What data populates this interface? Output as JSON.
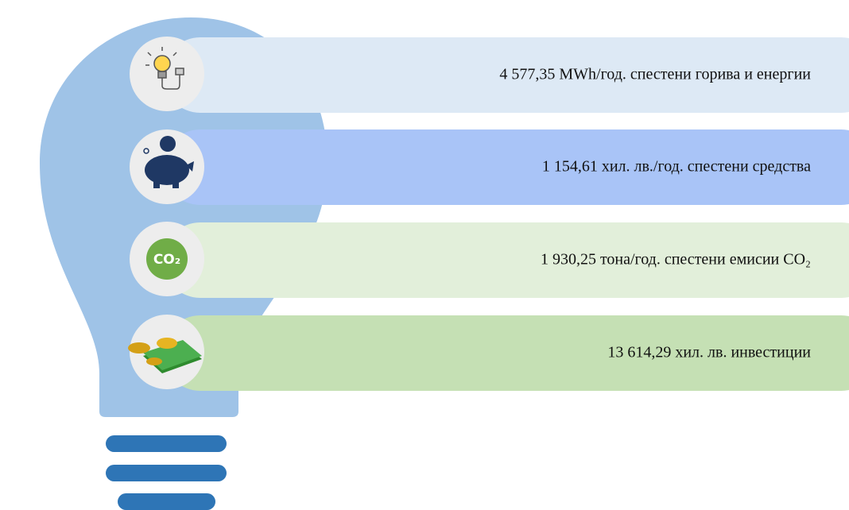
{
  "items": [
    {
      "text": "4 577,35 MWh/год. спестени горива и енергии"
    },
    {
      "text": "1 154,61 хил. лв./год. спестени средства"
    },
    {
      "text": "1 930,25 тона/год. спестени емисии CO₂"
    },
    {
      "text": "13 614,29 хил. лв. инвестиции"
    }
  ],
  "co2_icon": "CO₂"
}
